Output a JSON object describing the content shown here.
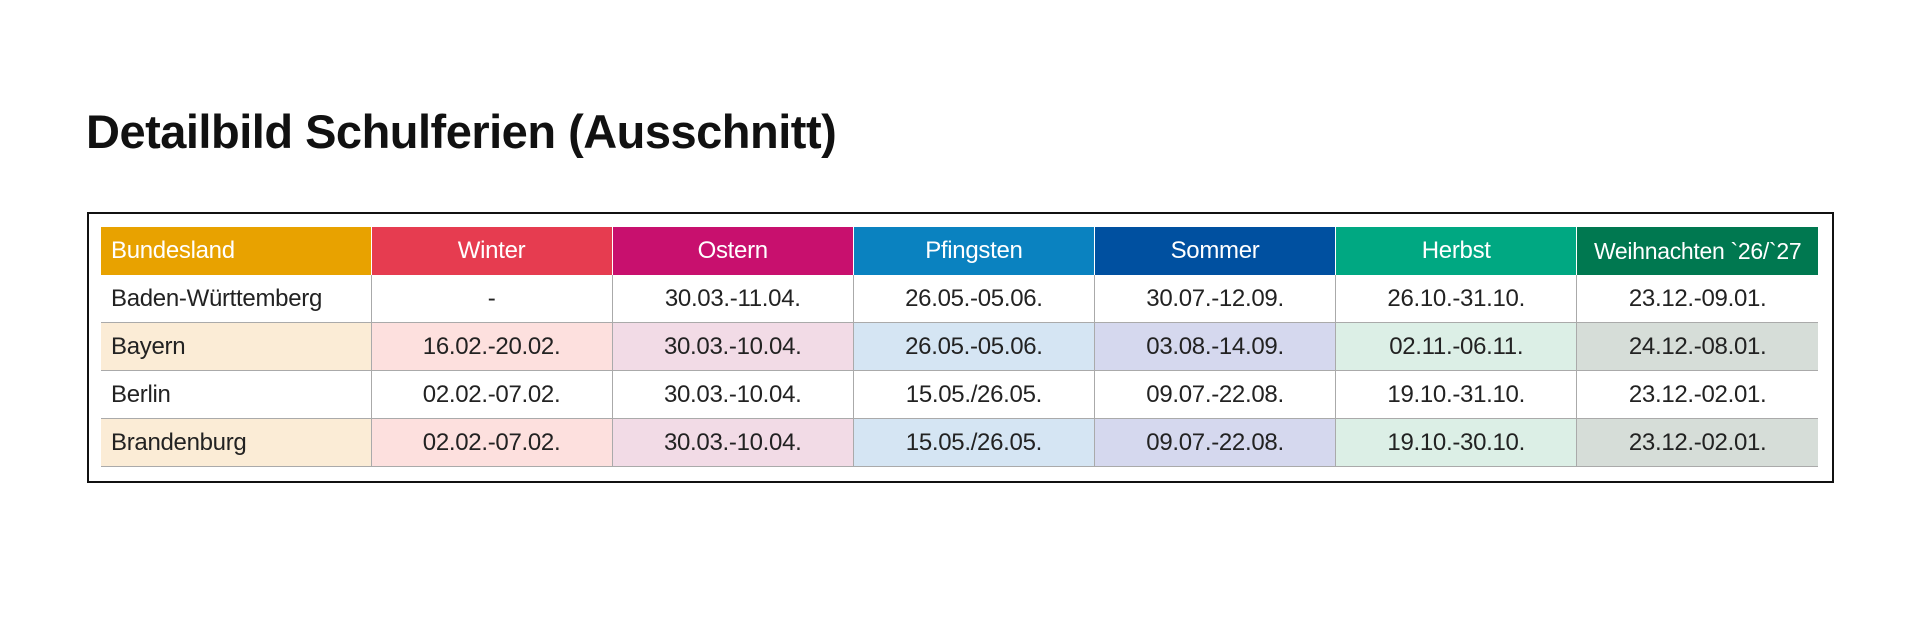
{
  "header": {
    "title": "Detailbild Schulferien (Ausschnitt)"
  },
  "table": {
    "columns": [
      "Bundesland",
      "Winter",
      "Ostern",
      "Pfingsten",
      "Sommer",
      "Herbst",
      "Weihnachten `26/`27"
    ],
    "rows": [
      [
        "Baden-Württemberg",
        "-",
        "30.03.-11.04.",
        "26.05.-05.06.",
        "30.07.-12.09.",
        "26.10.-31.10.",
        "23.12.-09.01."
      ],
      [
        "Bayern",
        "16.02.-20.02.",
        "30.03.-10.04.",
        "26.05.-05.06.",
        "03.08.-14.09.",
        "02.11.-06.11.",
        "24.12.-08.01."
      ],
      [
        "Berlin",
        "02.02.-07.02.",
        "30.03.-10.04.",
        "15.05./26.05.",
        "09.07.-22.08.",
        "19.10.-31.10.",
        "23.12.-02.01."
      ],
      [
        "Brandenburg",
        "02.02.-07.02.",
        "30.03.-10.04.",
        "15.05./26.05.",
        "09.07.-22.08.",
        "19.10.-30.10.",
        "23.12.-02.01."
      ]
    ]
  }
}
